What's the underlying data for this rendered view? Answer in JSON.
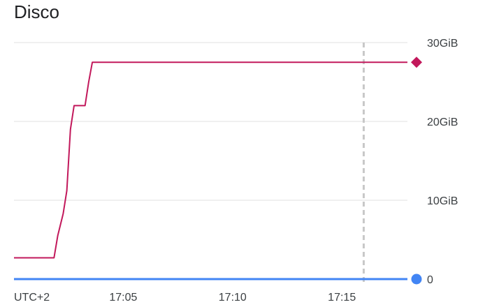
{
  "chart_data": {
    "type": "line",
    "title": "Disco",
    "x_tick_labels": [
      "UTC+2",
      "17:05",
      "17:10",
      "17:15"
    ],
    "x_tick_times": [
      null,
      "17:05",
      "17:10",
      "17:15"
    ],
    "x_range": [
      "17:00",
      "17:18"
    ],
    "y_tick_labels": [
      "0",
      "10GiB",
      "20GiB",
      "30GiB"
    ],
    "y_tick_values": [
      0,
      10,
      20,
      30
    ],
    "ylim": [
      0,
      30
    ],
    "y_unit": "GiB",
    "grid": true,
    "cursor_time": "17:16",
    "series": [
      {
        "color": "#c2185b",
        "marker": "diamond",
        "points": [
          [
            "17:00",
            2.7
          ],
          [
            "17:01:50",
            2.7
          ],
          [
            "17:02:00",
            5.5
          ],
          [
            "17:02:15",
            8.3
          ],
          [
            "17:02:25",
            11.2
          ],
          [
            "17:02:35",
            19.0
          ],
          [
            "17:02:45",
            22.0
          ],
          [
            "17:03:15",
            22.0
          ],
          [
            "17:03:25",
            25.0
          ],
          [
            "17:03:35",
            27.5
          ],
          [
            "17:18",
            27.5
          ]
        ]
      },
      {
        "color": "#4285f4",
        "marker": "circle",
        "points": [
          [
            "17:00",
            0.0
          ],
          [
            "17:18",
            0.0
          ]
        ]
      }
    ]
  }
}
